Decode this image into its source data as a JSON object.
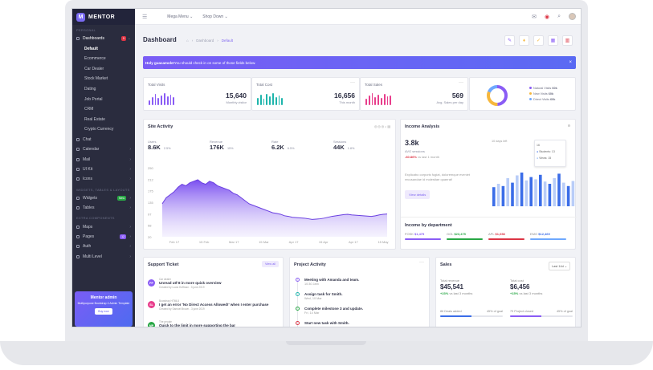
{
  "brand": {
    "name": "MENTOR",
    "mark": "M"
  },
  "sidebar": {
    "section_personal": "PERSONAL",
    "dashboards": "Dashboards",
    "dashboards_badge": "5",
    "subs": [
      "Default",
      "Ecommerce",
      "Car Dealer",
      "Stock Market",
      "Dating",
      "Job Portal",
      "CRM",
      "Real Estate",
      "Crypto Currency"
    ],
    "items1": [
      "Chat",
      "Calendar",
      "Mail",
      "UI Kit",
      "Icons"
    ],
    "section_widgets": "WIDGETS, TABLES & LAYOUTS",
    "widgets": "Widgets",
    "widgets_badge": "New",
    "tables": "Tables",
    "section_extra": "EXTRA COMPONENTS",
    "items2": [
      "Maps",
      "Pages",
      "Auth",
      "Multi Level"
    ],
    "pages_badge": "12",
    "promo": {
      "title": "Mentor admin",
      "desc": "Multipurpose Bootstrap 4 Admin Template",
      "button": "Buy now"
    }
  },
  "topbar": {
    "mega": "Mega Menu",
    "shop": "Shop Down"
  },
  "page": {
    "title": "Dashboard",
    "crumbs": [
      "Dashboard",
      "Default"
    ]
  },
  "alert": {
    "bold": "Holy guacamole!",
    "text": " You should check in on some of those fields below.",
    "close": "×"
  },
  "stats": [
    {
      "label": "Total Visits",
      "value": "15,640",
      "sub": "Monthly visitor",
      "color": "#8a5cf5"
    },
    {
      "label": "Total Cost",
      "value": "16,656",
      "sub": "This month",
      "color": "#1fb5ac"
    },
    {
      "label": "Total Sales",
      "value": "569",
      "sub": "Avg. Sales per day",
      "color": "#e83e8c"
    }
  ],
  "donut": {
    "legend": [
      {
        "label": "Natural Visits",
        "value": "60k",
        "color": "#8a5cf5"
      },
      {
        "label": "New Visits",
        "value": "60k",
        "color": "#f6b73c"
      },
      {
        "label": "Direct Visits",
        "value": "60k",
        "color": "#6ea8fe"
      }
    ]
  },
  "site_activity": {
    "title": "Site Activity",
    "metrics": [
      {
        "label": "Users",
        "value": "8.6K",
        "pct": "2.5%"
      },
      {
        "label": "Revenue",
        "value": "176K",
        "pct": "15%"
      },
      {
        "label": "Rate",
        "value": "6.2K",
        "pct": "6.5%"
      },
      {
        "label": "Sessions",
        "value": "44K",
        "pct": "1.8%"
      }
    ],
    "yticks": [
      "250",
      "212",
      "175",
      "135",
      "97",
      "58",
      "20"
    ],
    "xticks": [
      "Feb 17",
      "15 Feb",
      "Mar 17",
      "15 Mar",
      "Apr 17",
      "15 Apr",
      "Apr 17",
      "15 May"
    ],
    "series": [
      130,
      150,
      160,
      170,
      185,
      195,
      190,
      200,
      205,
      210,
      200,
      195,
      205,
      200,
      190,
      185,
      180,
      175,
      165,
      160,
      150,
      140,
      130,
      125,
      120,
      115,
      110,
      105,
      100,
      98,
      95,
      90,
      88,
      85,
      84,
      83,
      82,
      80,
      78,
      79,
      80,
      82,
      85,
      88,
      90,
      92,
      94,
      95,
      93,
      92,
      91,
      90,
      89,
      88,
      90,
      93,
      95,
      96
    ]
  },
  "income": {
    "title": "Income Analysis",
    "value": "3.8k",
    "label": "AVG sessions",
    "pct": "-60.86%",
    "pct_note": " vs last 1 month",
    "desc": "Explicabo corporis fugiat, doloremque eveniet recusandae id molestiae quaerat!",
    "button": "View details",
    "tab": "10 days left",
    "bars": [
      34,
      40,
      36,
      50,
      42,
      55,
      60,
      46,
      52,
      48,
      56,
      44,
      40,
      50,
      58,
      42,
      36,
      45
    ],
    "tooltip": {
      "date": "16",
      "s1": "Students: 13",
      "s2": "Views: 15"
    }
  },
  "by_dept": {
    "title": "Income by department",
    "items": [
      {
        "label": "FOSK",
        "value": "$1,475",
        "color": "#8a5cf5"
      },
      {
        "label": "GOL",
        "value": "$23,475",
        "color": "#28a745"
      },
      {
        "label": "APL",
        "value": "$1,658",
        "color": "#dc3545"
      },
      {
        "label": "EMG",
        "value": "$12,469",
        "color": "#6ea8fe"
      }
    ]
  },
  "support": {
    "title": "Support Ticket",
    "button": "View all",
    "tickets": [
      {
        "av": "PP",
        "color": "#8a5cf5",
        "cat": "Car dealer",
        "title": "Unread utf-8 in more quick overview",
        "by": "Created by Lucia Hoffman - 3 june 2019"
      },
      {
        "av": "SL",
        "color": "#e83e8c",
        "cat": "Bootstrap HTML5",
        "title": "I get an error 'No Direct Access Allowed!' when I enter purchase",
        "by": "Created by Samuel Brown - 3 june 2019"
      },
      {
        "av": "MP",
        "color": "#28a745",
        "cat": "The people",
        "title": "Quick to the limit in more supporting the bar",
        "by": ""
      }
    ]
  },
  "project": {
    "title": "Project Activity",
    "items": [
      {
        "title": "Meeting with Amanda and team.",
        "time": "10:30 Jam",
        "color": "#8a5cf5"
      },
      {
        "title": "Assign task for Smith.",
        "time": "Wed, 10 Mar",
        "color": "#1fb5ac"
      },
      {
        "title": "Complete milestone 3 and update.",
        "time": "Fri, 14 Mar",
        "color": "#28a745"
      },
      {
        "title": "Start new task with Smith.",
        "time": "",
        "color": "#dc3545"
      }
    ]
  },
  "sales": {
    "title": "Sales",
    "select": "Last 14d",
    "revenue": {
      "label": "Total revenue",
      "value": "$45,541",
      "pct": "+23%",
      "note": " vs last 3 months"
    },
    "cost": {
      "label": "Total cost",
      "value": "$6,456",
      "pct": "+15%",
      "note": " vs last 3 months"
    },
    "deals": {
      "label": "86 Deals added",
      "goal": "45% of goal"
    },
    "projects": {
      "label": "79 Project closed",
      "goal": "45% of goal"
    }
  }
}
